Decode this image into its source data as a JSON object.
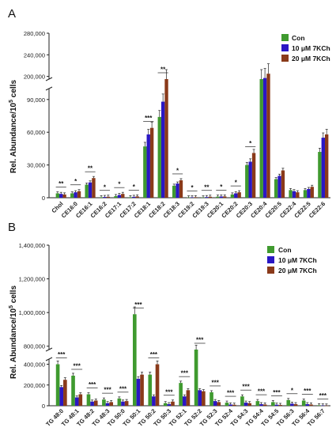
{
  "colors": {
    "con": "#3f9a2f",
    "k10": "#2a17c4",
    "k20": "#8a3a1a",
    "axis": "#222222"
  },
  "legend": [
    "Con",
    "10 μM 7KCh",
    "20 μM 7KCh"
  ],
  "ylabel_main": "Rel. Abundance/10",
  "ylabel_sup": "5",
  "ylabel_tail": " cells",
  "chart_data": [
    {
      "panel": "A",
      "type": "bar",
      "categories": [
        "Chol",
        "CE16:0",
        "CE16:1",
        "CE16:2",
        "CE17:1",
        "CE17:2",
        "CE18:1",
        "CE18:2",
        "CE18:3",
        "CE19:2",
        "CE19:3",
        "CE20:1",
        "CE20:2",
        "CE20:3",
        "CE20:4",
        "CE20:5",
        "CE22:4",
        "CE22:5",
        "CE22:6"
      ],
      "series": [
        {
          "name": "Con",
          "values": [
            4000,
            4000,
            12000,
            500,
            1500,
            500,
            47000,
            74000,
            11000,
            300,
            300,
            1000,
            3000,
            30000,
            190000,
            17000,
            7000,
            7000,
            42000
          ]
        },
        {
          "name": "10 μM 7KCh",
          "values": [
            3500,
            5000,
            14000,
            700,
            2500,
            800,
            58000,
            88000,
            13000,
            400,
            600,
            1100,
            4000,
            33000,
            197000,
            20000,
            6000,
            8000,
            55000
          ]
        },
        {
          "name": "20 μM 7KCh",
          "values": [
            3000,
            6000,
            18000,
            900,
            3500,
            1200,
            64000,
            102000,
            16000,
            500,
            900,
            1200,
            5000,
            41000,
            205000,
            25000,
            5000,
            10000,
            58000
          ]
        }
      ],
      "yticks": [
        "0",
        "30,000",
        "60,000",
        "90,000",
        "200,000",
        "240,000",
        "280,000"
      ],
      "ybreak": [
        100000,
        195000
      ],
      "significance": [
        "**",
        "*",
        "**",
        "*",
        "*",
        "*",
        "***",
        "**",
        "*",
        "*",
        "**",
        "*",
        "*",
        "*"
      ]
    },
    {
      "panel": "B",
      "type": "bar",
      "categories": [
        "TG 48:0",
        "TG 48:1",
        "TG 48:2",
        "TG 48:3",
        "TG 50:0",
        "TG 50:1",
        "TG 50:2",
        "TG 50:3",
        "TG 52:1",
        "TG 52:2",
        "TG 52:3",
        "TG 52:4",
        "TG 54:3",
        "TG 54:4",
        "TG 54:5",
        "TG 56:3",
        "TG 56:4",
        "TG 56:7"
      ],
      "series": [
        {
          "name": "Con",
          "values": [
            400000,
            290000,
            110000,
            60000,
            70000,
            990000,
            300000,
            25000,
            220000,
            560000,
            130000,
            30000,
            90000,
            45000,
            35000,
            55000,
            50000,
            5000
          ]
        },
        {
          "name": "10 μM 7KCh",
          "values": [
            180000,
            80000,
            40000,
            25000,
            40000,
            260000,
            90000,
            15000,
            90000,
            150000,
            45000,
            12000,
            30000,
            15000,
            10000,
            20000,
            15000,
            3000
          ]
        },
        {
          "name": "20 μM 7KCh",
          "values": [
            250000,
            110000,
            50000,
            35000,
            45000,
            300000,
            400000,
            40000,
            150000,
            140000,
            35000,
            10000,
            25000,
            12000,
            8000,
            15000,
            12000,
            2000
          ]
        }
      ],
      "yticks": [
        "0",
        "200,000",
        "400,000",
        "800,000",
        "1,000,000",
        "1,200,000",
        "1,400,000"
      ],
      "ybreak": [
        450000,
        780000
      ],
      "significance": [
        "***",
        "***",
        "***",
        "***",
        "***",
        "***",
        "***",
        "***",
        "***",
        "***",
        "***",
        "***",
        "***",
        "***",
        "***",
        "*",
        "***",
        "***",
        "*"
      ]
    }
  ]
}
